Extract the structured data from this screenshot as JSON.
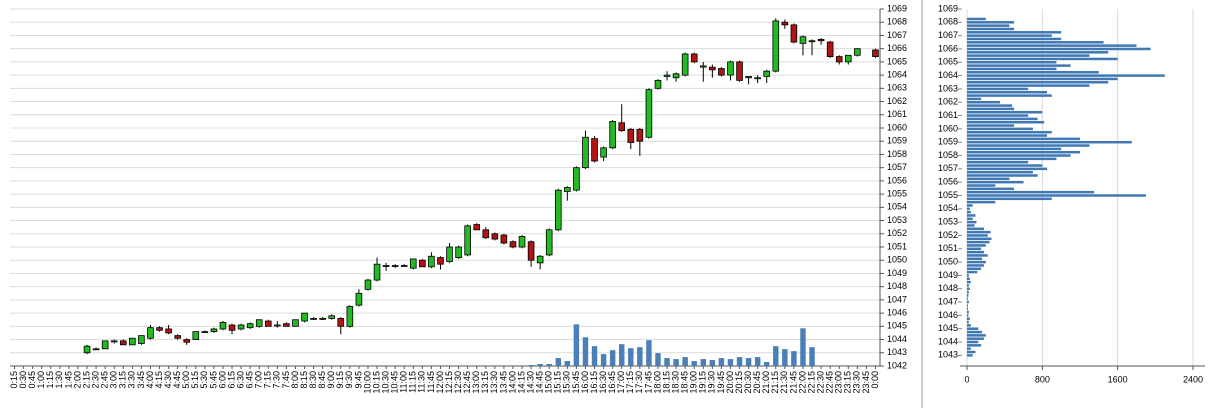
{
  "chart_data": [
    {
      "type": "candlestick",
      "categories": [
        "0:15",
        "0:30",
        "0:45",
        "1:00",
        "1:15",
        "1:30",
        "1:45",
        "2:00",
        "2:15",
        "2:30",
        "2:45",
        "3:00",
        "3:15",
        "3:30",
        "3:45",
        "4:00",
        "4:15",
        "4:30",
        "4:45",
        "5:00",
        "5:15",
        "5:30",
        "5:45",
        "6:00",
        "6:15",
        "6:30",
        "6:45",
        "7:00",
        "7:15",
        "7:30",
        "7:45",
        "8:00",
        "8:15",
        "8:30",
        "8:45",
        "9:00",
        "9:15",
        "9:30",
        "9:45",
        "10:00",
        "10:15",
        "10:30",
        "10:45",
        "11:00",
        "11:15",
        "11:30",
        "11:45",
        "12:00",
        "12:15",
        "12:30",
        "12:45",
        "13:00",
        "13:15",
        "13:30",
        "13:45",
        "14:00",
        "14:15",
        "14:30",
        "14:45",
        "15:00",
        "15:15",
        "15:30",
        "15:45",
        "16:00",
        "16:15",
        "16:30",
        "16:45",
        "17:00",
        "17:15",
        "17:30",
        "17:45",
        "18:00",
        "18:15",
        "18:30",
        "18:45",
        "19:00",
        "19:15",
        "19:30",
        "19:45",
        "20:00",
        "20:15",
        "20:30",
        "20:45",
        "21:00",
        "21:15",
        "21:30",
        "21:45",
        "22:00",
        "22:15",
        "22:30",
        "22:45",
        "23:00",
        "23:15",
        "23:30",
        "23:45",
        "0:00"
      ],
      "open": [
        null,
        null,
        null,
        null,
        null,
        null,
        null,
        null,
        1043.0,
        1043.3,
        1043.3,
        1043.9,
        1043.9,
        1043.6,
        1043.7,
        1044.1,
        1044.9,
        1044.8,
        1044.3,
        1044.0,
        1044.0,
        1044.6,
        1044.6,
        1044.8,
        1045.1,
        1044.8,
        1044.9,
        1045.0,
        1045.4,
        1045.1,
        1045.2,
        1045.0,
        1045.4,
        1045.6,
        1045.6,
        1045.6,
        1045.6,
        1045.0,
        1046.6,
        1047.8,
        1048.5,
        1049.6,
        1049.6,
        1049.6,
        1049.4,
        1050.0,
        1049.5,
        1050.2,
        1049.9,
        1050.2,
        1050.4,
        1052.7,
        1052.3,
        1052.0,
        1051.9,
        1051.4,
        1051.0,
        1051.4,
        1049.8,
        1050.4,
        1052.3,
        1055.2,
        1055.3,
        1057.0,
        1059.2,
        1057.8,
        1058.5,
        1060.4,
        1059.9,
        1059.9,
        1059.3,
        1063.0,
        1063.9,
        1063.8,
        1064.0,
        1065.6,
        1064.6,
        1064.6,
        1064.5,
        1064.0,
        1065.0,
        1063.8,
        1063.8,
        1063.9,
        1064.3,
        1068.0,
        1067.8,
        1066.4,
        1066.6,
        1066.7,
        1066.5,
        1065.4,
        1065.0,
        1065.5,
        null,
        1065.9
      ],
      "high": [
        null,
        null,
        null,
        null,
        null,
        null,
        null,
        null,
        1043.6,
        1043.4,
        1043.9,
        1044.0,
        1044.0,
        1044.1,
        1044.3,
        1045.1,
        1045.0,
        1045.1,
        1044.4,
        1044.1,
        1044.6,
        1044.7,
        1044.9,
        1045.4,
        1045.2,
        1045.2,
        1045.3,
        1045.5,
        1045.5,
        1045.4,
        1045.3,
        1045.5,
        1046.0,
        1045.7,
        1045.7,
        1045.9,
        1045.7,
        1046.6,
        1047.8,
        1048.6,
        1050.2,
        1049.8,
        1049.7,
        1049.7,
        1050.1,
        1050.1,
        1050.6,
        1050.3,
        1051.3,
        1051.1,
        1052.7,
        1052.8,
        1052.5,
        1052.1,
        1052.0,
        1051.5,
        1051.9,
        1051.5,
        1050.4,
        1052.4,
        1055.4,
        1055.6,
        1057.1,
        1059.8,
        1059.4,
        1058.6,
        1060.6,
        1061.8,
        1060.0,
        1060.0,
        1063.0,
        1063.7,
        1064.3,
        1064.2,
        1065.7,
        1065.7,
        1065.0,
        1064.8,
        1064.6,
        1065.1,
        1065.1,
        1063.9,
        1064.0,
        1064.4,
        1068.3,
        1068.2,
        1067.9,
        1067.0,
        1066.7,
        1066.8,
        1066.6,
        1065.5,
        1065.5,
        1066.0,
        null,
        1066.0
      ],
      "low": [
        null,
        null,
        null,
        null,
        null,
        null,
        null,
        null,
        1042.9,
        1043.2,
        1043.3,
        1043.7,
        1043.6,
        1043.6,
        1043.6,
        1044.0,
        1044.6,
        1044.4,
        1044.0,
        1043.6,
        1044.0,
        1044.5,
        1044.5,
        1044.7,
        1044.4,
        1044.7,
        1044.8,
        1044.9,
        1045.0,
        1044.9,
        1045.0,
        1045.0,
        1045.3,
        1045.5,
        1045.5,
        1045.5,
        1044.4,
        1044.9,
        1046.5,
        1047.7,
        1048.4,
        1049.2,
        1049.4,
        1049.5,
        1049.3,
        1049.5,
        1049.4,
        1049.3,
        1049.8,
        1050.1,
        1050.3,
        1052.3,
        1051.6,
        1051.5,
        1051.2,
        1050.9,
        1050.9,
        1049.5,
        1049.3,
        1050.3,
        1052.2,
        1054.5,
        1055.2,
        1056.9,
        1057.4,
        1057.5,
        1058.4,
        1059.7,
        1058.4,
        1057.9,
        1059.2,
        1062.9,
        1063.6,
        1063.5,
        1063.9,
        1064.9,
        1063.5,
        1063.8,
        1063.9,
        1063.6,
        1063.5,
        1063.3,
        1063.4,
        1063.4,
        1064.2,
        1067.5,
        1066.4,
        1065.5,
        1065.5,
        1066.3,
        1065.3,
        1064.8,
        1064.8,
        1065.4,
        null,
        1065.3
      ],
      "close": [
        null,
        null,
        null,
        null,
        null,
        null,
        null,
        null,
        1043.5,
        1043.3,
        1043.9,
        1043.9,
        1043.6,
        1044.1,
        1044.3,
        1044.9,
        1044.7,
        1044.5,
        1044.1,
        1043.8,
        1044.6,
        1044.6,
        1044.8,
        1045.3,
        1044.7,
        1045.1,
        1045.2,
        1045.5,
        1045.0,
        1045.1,
        1045.0,
        1045.5,
        1046.0,
        1045.6,
        1045.6,
        1045.8,
        1045.0,
        1046.5,
        1047.5,
        1048.5,
        1049.7,
        1049.6,
        1049.6,
        1049.6,
        1050.1,
        1049.5,
        1050.3,
        1049.7,
        1051.0,
        1051.0,
        1052.6,
        1052.3,
        1051.7,
        1051.6,
        1051.3,
        1051.0,
        1051.8,
        1050.0,
        1050.3,
        1052.3,
        1055.3,
        1055.5,
        1057.0,
        1059.3,
        1057.5,
        1058.5,
        1060.5,
        1059.8,
        1058.9,
        1059.0,
        1062.9,
        1063.6,
        1064.0,
        1064.1,
        1065.6,
        1065.0,
        1064.7,
        1064.4,
        1064.0,
        1065.0,
        1063.6,
        1063.9,
        1063.8,
        1064.3,
        1068.1,
        1067.8,
        1066.5,
        1066.9,
        1066.6,
        1066.6,
        1065.4,
        1065.0,
        1065.5,
        1066.0,
        null,
        1065.4
      ],
      "up_color": "#22bb22",
      "down_color": "#b01414",
      "volume": [
        null,
        null,
        null,
        null,
        null,
        null,
        null,
        null,
        null,
        null,
        null,
        null,
        null,
        null,
        null,
        null,
        null,
        null,
        null,
        null,
        null,
        null,
        null,
        null,
        null,
        null,
        null,
        null,
        null,
        null,
        null,
        null,
        null,
        null,
        null,
        null,
        null,
        null,
        null,
        null,
        null,
        null,
        null,
        null,
        null,
        null,
        null,
        null,
        null,
        null,
        null,
        null,
        null,
        null,
        null,
        null,
        null,
        1,
        2,
        2,
        8,
        5,
        42,
        29,
        20,
        12,
        16,
        22,
        18,
        19,
        26,
        13,
        8,
        7,
        9,
        5,
        7,
        6,
        8,
        7,
        9,
        8,
        9,
        4,
        20,
        17,
        15,
        38,
        19,
        null,
        null,
        null,
        null,
        null,
        null,
        null
      ],
      "volume_color": "#4a7fb8",
      "ylim": [
        1042,
        1069
      ],
      "yticks": [
        1042,
        1043,
        1044,
        1045,
        1046,
        1047,
        1048,
        1049,
        1050,
        1051,
        1052,
        1053,
        1054,
        1055,
        1056,
        1057,
        1058,
        1059,
        1060,
        1061,
        1062,
        1063,
        1064,
        1065,
        1066,
        1067,
        1068,
        1069
      ],
      "y2lim": [
        0,
        360
      ],
      "grid": true
    },
    {
      "type": "volume_profile",
      "levels": [
        1043.0,
        1043.25,
        1043.5,
        1043.75,
        1044.0,
        1044.25,
        1044.5,
        1044.75,
        1045.0,
        1045.25,
        1045.5,
        1045.75,
        1046.0,
        1046.25,
        1046.5,
        1046.75,
        1047.0,
        1047.25,
        1047.5,
        1047.75,
        1048.0,
        1048.25,
        1048.5,
        1048.75,
        1049.0,
        1049.25,
        1049.5,
        1049.75,
        1050.0,
        1050.25,
        1050.5,
        1050.75,
        1051.0,
        1051.25,
        1051.5,
        1051.75,
        1052.0,
        1052.25,
        1052.5,
        1052.75,
        1053.0,
        1053.25,
        1053.5,
        1053.75,
        1054.0,
        1054.25,
        1054.5,
        1054.75,
        1055.0,
        1055.25,
        1055.5,
        1055.75,
        1056.0,
        1056.25,
        1056.5,
        1056.75,
        1057.0,
        1057.25,
        1057.5,
        1057.75,
        1058.0,
        1058.25,
        1058.5,
        1058.75,
        1059.0,
        1059.25,
        1059.5,
        1059.75,
        1060.0,
        1060.25,
        1060.5,
        1060.75,
        1061.0,
        1061.25,
        1061.5,
        1061.75,
        1062.0,
        1062.25,
        1062.5,
        1062.75,
        1063.0,
        1063.25,
        1063.5,
        1063.75,
        1064.0,
        1064.25,
        1064.5,
        1064.75,
        1065.0,
        1065.25,
        1065.5,
        1065.75,
        1066.0,
        1066.25,
        1066.5,
        1066.75,
        1067.0,
        1067.25,
        1067.5,
        1067.75,
        1068.0,
        1068.25
      ],
      "values": [
        60,
        90,
        40,
        150,
        120,
        180,
        200,
        160,
        120,
        40,
        20,
        30,
        15,
        20,
        10,
        10,
        20,
        10,
        15,
        20,
        30,
        20,
        40,
        30,
        20,
        110,
        150,
        180,
        200,
        160,
        220,
        180,
        150,
        200,
        240,
        260,
        220,
        250,
        180,
        80,
        100,
        60,
        90,
        40,
        30,
        60,
        300,
        900,
        1900,
        1350,
        500,
        300,
        600,
        450,
        750,
        700,
        850,
        800,
        650,
        950,
        1100,
        1200,
        1000,
        1300,
        1750,
        1200,
        850,
        900,
        700,
        500,
        820,
        750,
        650,
        800,
        500,
        480,
        350,
        150,
        900,
        850,
        650,
        1300,
        1500,
        1600,
        2100,
        1400,
        950,
        1100,
        950,
        1600,
        1300,
        1500,
        1950,
        1800,
        1450,
        1000,
        900,
        1000,
        500,
        450,
        500,
        200
      ],
      "color": "#3f78b4",
      "xlim": [
        0,
        2400
      ],
      "xticks": [
        0,
        800,
        1600,
        2400
      ],
      "ylim": [
        1042.2,
        1069
      ],
      "yticks": [
        1043,
        1044,
        1045,
        1046,
        1047,
        1048,
        1049,
        1050,
        1051,
        1052,
        1053,
        1054,
        1055,
        1056,
        1057,
        1058,
        1059,
        1060,
        1061,
        1062,
        1063,
        1064,
        1065,
        1066,
        1067,
        1068,
        1069
      ],
      "grid": true
    }
  ]
}
